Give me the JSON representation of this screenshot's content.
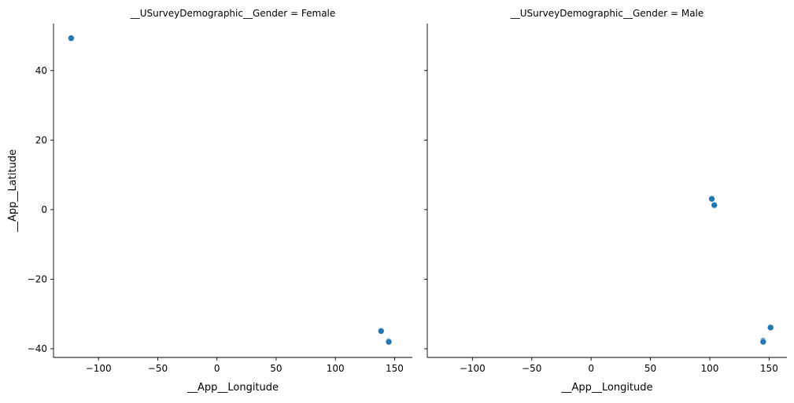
{
  "chart_data": [
    {
      "type": "scatter",
      "title": "__USurveyDemographic__Gender = Female",
      "xlabel": "__App__Longitude",
      "ylabel": "__App__Latitude",
      "xlim": [
        -138,
        165
      ],
      "ylim": [
        -42.5,
        53.5
      ],
      "xticks": [
        -100,
        -50,
        0,
        50,
        100,
        150
      ],
      "yticks": [
        -40,
        -20,
        0,
        20,
        40
      ],
      "xtick_labels": [
        "−100",
        "−50",
        "0",
        "50",
        "100",
        "150"
      ],
      "ytick_labels": [
        "−40",
        "−20",
        "0",
        "20",
        "40"
      ],
      "grid": false,
      "color": "#1f77b4",
      "points": [
        {
          "x": -123.1,
          "y": 49.3
        },
        {
          "x": 138.6,
          "y": -34.9
        },
        {
          "x": 144.9,
          "y": -37.8
        },
        {
          "x": 145.1,
          "y": -38.0
        }
      ]
    },
    {
      "type": "scatter",
      "title": "__USurveyDemographic__Gender = Male",
      "xlabel": "__App__Longitude",
      "ylabel": "",
      "xlim": [
        -138,
        165
      ],
      "ylim": [
        -42.5,
        53.5
      ],
      "xticks": [
        -100,
        -50,
        0,
        50,
        100,
        150
      ],
      "yticks": [
        -40,
        -20,
        0,
        20,
        40
      ],
      "xtick_labels": [
        "−100",
        "−50",
        "0",
        "50",
        "100",
        "150"
      ],
      "ytick_labels": [],
      "grid": false,
      "color": "#1f77b4",
      "points": [
        {
          "x": 101.7,
          "y": 3.1
        },
        {
          "x": 103.8,
          "y": 1.3
        },
        {
          "x": 151.2,
          "y": -33.9
        },
        {
          "x": 144.9,
          "y": -37.7
        },
        {
          "x": 145.0,
          "y": -38.0
        }
      ]
    }
  ]
}
